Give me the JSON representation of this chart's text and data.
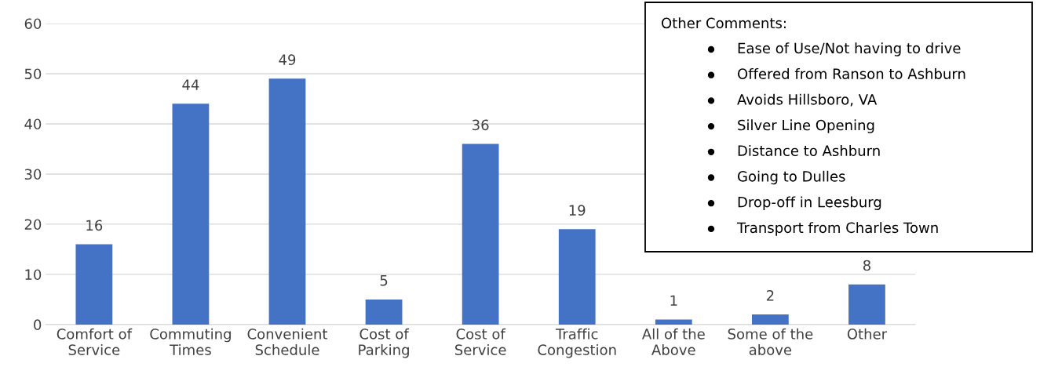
{
  "chart_data": {
    "type": "bar",
    "categories": [
      "Comfort of Service",
      "Commuting Times",
      "Convenient Schedule",
      "Cost of Parking",
      "Cost of Service",
      "Traffic Congestion",
      "All of the Above",
      "Some of the above",
      "Other"
    ],
    "values": [
      16,
      44,
      49,
      5,
      36,
      19,
      1,
      2,
      8
    ],
    "color": "#4472c4",
    "ylim": [
      0,
      60
    ],
    "yticks": [
      0,
      10,
      20,
      30,
      40,
      50,
      60
    ],
    "grid": "y",
    "data_labels": true,
    "legend": false,
    "annotations": [
      "Other Comments:",
      "Ease of Use/Not having to drive",
      "Offered from Ranson to Ashburn",
      "Avoids Hillsboro, VA",
      "Silver Line Opening",
      "Distance to Ashburn",
      "Going to Dulles",
      "Drop-off in Leesburg",
      "Transport from Charles Town"
    ]
  }
}
